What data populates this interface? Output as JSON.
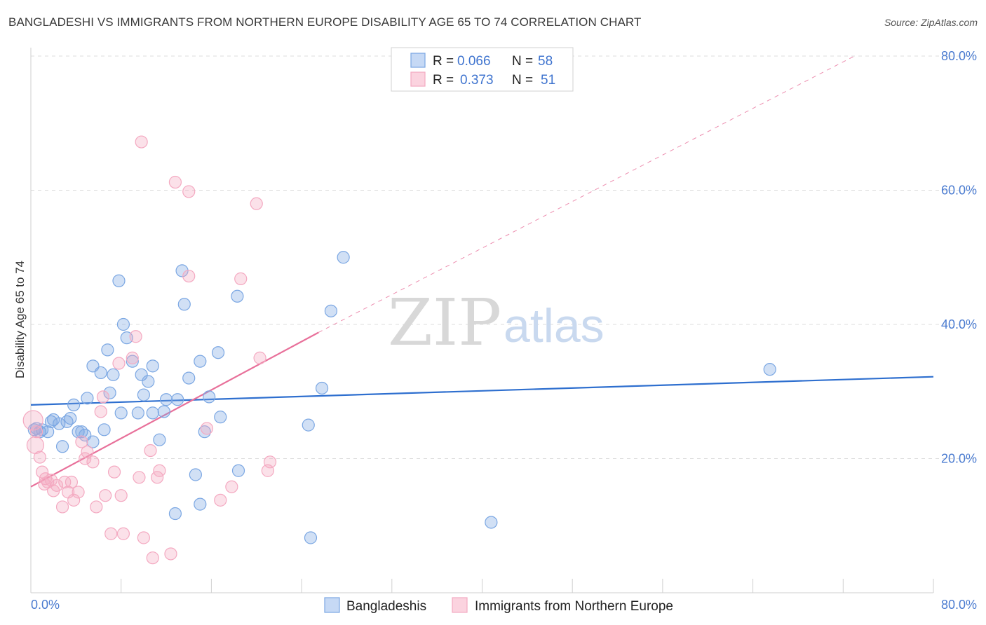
{
  "title": "BANGLADESHI VS IMMIGRANTS FROM NORTHERN EUROPE DISABILITY AGE 65 TO 74 CORRELATION CHART",
  "source": "Source: ZipAtlas.com",
  "watermark": {
    "zip": "ZIP",
    "atlas": "atlas"
  },
  "chart_data": {
    "type": "scatter",
    "title": "BANGLADESHI VS IMMIGRANTS FROM NORTHERN EUROPE DISABILITY AGE 65 TO 74 CORRELATION CHART",
    "xlabel": "",
    "ylabel": "Disability Age 65 to 74",
    "xlim": [
      0,
      80
    ],
    "ylim": [
      0,
      80
    ],
    "x_tick_labels": [
      "0.0%",
      "80.0%"
    ],
    "y_ticks": [
      20,
      40,
      60,
      80
    ],
    "y_tick_labels": [
      "20.0%",
      "40.0%",
      "60.0%",
      "80.0%"
    ],
    "grid": true,
    "legend": {
      "position": "top-center",
      "entries": [
        {
          "r_label": "R =",
          "r_value": "0.066",
          "n_label": "N =",
          "n_value": "58"
        },
        {
          "r_label": "R =",
          "r_value": "0.373",
          "n_label": "N =",
          "n_value": "51"
        }
      ]
    },
    "series": [
      {
        "name": "Bangladeshis",
        "color": "#7ba7e3",
        "line_color": "#2e6fcf",
        "trend": {
          "x0": 0,
          "y0": 28.0,
          "x1": 80,
          "y1": 32.2
        },
        "points": [
          [
            0.3,
            24.3
          ],
          [
            0.5,
            24.5
          ],
          [
            0.8,
            24.0
          ],
          [
            1.0,
            24.3
          ],
          [
            1.5,
            24.0
          ],
          [
            1.8,
            25.5
          ],
          [
            2.0,
            25.8
          ],
          [
            2.5,
            25.2
          ],
          [
            2.8,
            21.8
          ],
          [
            3.2,
            25.5
          ],
          [
            3.5,
            26.0
          ],
          [
            3.8,
            28.0
          ],
          [
            4.2,
            24.0
          ],
          [
            4.5,
            24.0
          ],
          [
            4.8,
            23.5
          ],
          [
            5.0,
            29.0
          ],
          [
            5.5,
            22.5
          ],
          [
            5.5,
            33.8
          ],
          [
            6.2,
            32.8
          ],
          [
            6.5,
            24.3
          ],
          [
            6.8,
            36.2
          ],
          [
            7.0,
            29.8
          ],
          [
            7.3,
            32.5
          ],
          [
            7.8,
            46.5
          ],
          [
            8.0,
            26.8
          ],
          [
            8.2,
            40.0
          ],
          [
            8.5,
            38.0
          ],
          [
            9.0,
            34.5
          ],
          [
            9.5,
            26.8
          ],
          [
            9.8,
            32.5
          ],
          [
            10.0,
            29.5
          ],
          [
            10.4,
            31.5
          ],
          [
            10.8,
            33.8
          ],
          [
            10.8,
            26.8
          ],
          [
            11.4,
            22.8
          ],
          [
            11.8,
            27.0
          ],
          [
            12.0,
            28.8
          ],
          [
            13.0,
            28.8
          ],
          [
            13.4,
            48.0
          ],
          [
            13.6,
            43.0
          ],
          [
            14.0,
            32.0
          ],
          [
            12.8,
            11.8
          ],
          [
            14.6,
            17.6
          ],
          [
            15.0,
            13.2
          ],
          [
            15.0,
            34.5
          ],
          [
            15.4,
            24.0
          ],
          [
            15.8,
            29.2
          ],
          [
            16.6,
            35.8
          ],
          [
            16.8,
            26.2
          ],
          [
            18.3,
            44.2
          ],
          [
            18.4,
            18.2
          ],
          [
            24.6,
            25.0
          ],
          [
            24.8,
            8.2
          ],
          [
            25.8,
            30.5
          ],
          [
            26.6,
            42.0
          ],
          [
            27.7,
            50.0
          ],
          [
            40.8,
            10.5
          ],
          [
            65.5,
            33.3
          ]
        ]
      },
      {
        "name": "Immigrants from Northern Europe",
        "color": "#f4a9c1",
        "line_color": "#e8709a",
        "trend": {
          "x0": 0,
          "y0": 15.8,
          "x1": 25.5,
          "y1": 38.8
        },
        "trend_extended": {
          "x0": 25.5,
          "y0": 38.8,
          "x1": 73,
          "y1": 80
        },
        "points": [
          [
            0.2,
            25.7
          ],
          [
            0.4,
            22.0
          ],
          [
            0.8,
            20.2
          ],
          [
            1.0,
            18.0
          ],
          [
            1.3,
            17.0
          ],
          [
            1.5,
            16.5
          ],
          [
            1.8,
            16.8
          ],
          [
            2.0,
            15.2
          ],
          [
            2.3,
            16.0
          ],
          [
            2.8,
            12.8
          ],
          [
            3.0,
            16.5
          ],
          [
            3.3,
            15.0
          ],
          [
            3.6,
            16.5
          ],
          [
            3.8,
            13.8
          ],
          [
            4.2,
            15.0
          ],
          [
            4.5,
            22.5
          ],
          [
            4.8,
            20.0
          ],
          [
            5.0,
            21.0
          ],
          [
            5.5,
            19.5
          ],
          [
            5.8,
            12.8
          ],
          [
            6.2,
            27.0
          ],
          [
            6.4,
            29.2
          ],
          [
            6.6,
            14.5
          ],
          [
            7.1,
            8.8
          ],
          [
            7.4,
            18.0
          ],
          [
            7.8,
            34.2
          ],
          [
            8.0,
            14.5
          ],
          [
            8.2,
            8.8
          ],
          [
            9.0,
            35.0
          ],
          [
            9.3,
            38.2
          ],
          [
            9.6,
            17.2
          ],
          [
            9.8,
            67.2
          ],
          [
            10.0,
            8.2
          ],
          [
            10.6,
            21.2
          ],
          [
            10.8,
            5.2
          ],
          [
            11.2,
            17.2
          ],
          [
            11.4,
            18.2
          ],
          [
            12.4,
            5.8
          ],
          [
            12.8,
            61.2
          ],
          [
            14.0,
            47.2
          ],
          [
            14.0,
            59.8
          ],
          [
            15.6,
            24.5
          ],
          [
            16.8,
            13.8
          ],
          [
            17.8,
            15.8
          ],
          [
            18.6,
            46.8
          ],
          [
            20.0,
            58.0
          ],
          [
            20.3,
            35.0
          ],
          [
            21.0,
            18.2
          ],
          [
            21.2,
            19.5
          ],
          [
            0.5,
            24.0
          ],
          [
            1.2,
            16.2
          ]
        ]
      }
    ]
  },
  "bottom_legend": [
    "Bangladeshis",
    "Immigrants from Northern Europe"
  ]
}
